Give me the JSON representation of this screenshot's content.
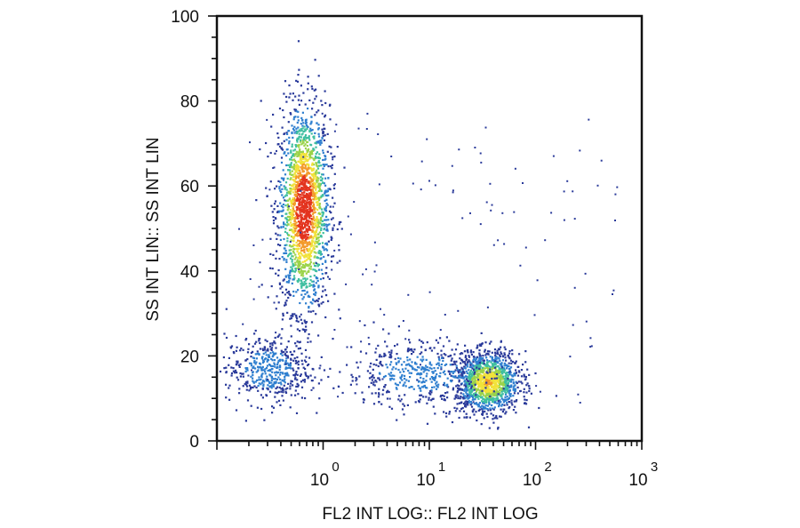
{
  "chart_data": {
    "type": "scatter",
    "plot_kind": "flow cytometry density dot plot",
    "xlabel": "FL2 INT LOG:: FL2 INT LOG",
    "ylabel": "SS INT LIN:: SS INT LIN",
    "x_scale": "log",
    "xlim": [
      0.1,
      1000
    ],
    "x_tick_labels": [
      {
        "value": 1,
        "base": "10",
        "exp": "0"
      },
      {
        "value": 10,
        "base": "10",
        "exp": "1"
      },
      {
        "value": 100,
        "base": "10",
        "exp": "2"
      },
      {
        "value": 1000,
        "base": "10",
        "exp": "3"
      }
    ],
    "y_scale": "linear",
    "ylim": [
      0,
      100
    ],
    "y_ticks": [
      0,
      20,
      40,
      60,
      80,
      100
    ],
    "grid": false,
    "legend": "none",
    "colormap": [
      "#2a3a9a",
      "#2f7fcf",
      "#3fbfa0",
      "#9bd34a",
      "#f1e23a",
      "#f39a2a",
      "#e3341f"
    ],
    "populations": [
      {
        "center_x": 0.65,
        "center_y": 55,
        "x_spread_decades": 0.12,
        "y_spread": 12,
        "relative_density": 1.0
      },
      {
        "center_x": 0.3,
        "center_y": 17,
        "x_spread_decades": 0.2,
        "y_spread": 4,
        "relative_density": 0.25
      },
      {
        "center_x": 35,
        "center_y": 14,
        "x_spread_decades": 0.15,
        "y_spread": 3.5,
        "relative_density": 0.7
      },
      {
        "center_x": 8,
        "center_y": 16,
        "x_spread_decades": 0.35,
        "y_spread": 4,
        "relative_density": 0.25
      }
    ]
  }
}
